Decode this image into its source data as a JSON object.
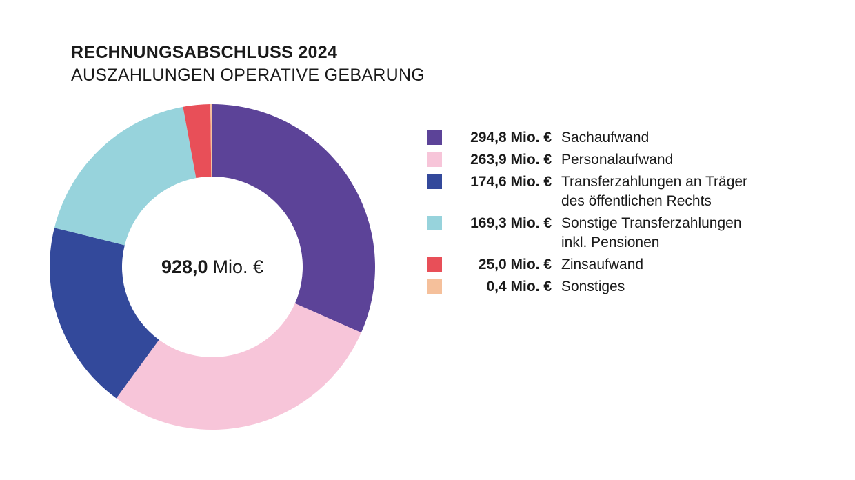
{
  "header": {
    "title": "RECHNUNGSABSCHLUSS 2024",
    "subtitle": "AUSZAHLUNGEN OPERATIVE GEBARUNG"
  },
  "chart_data": {
    "type": "pie",
    "variant": "donut",
    "title": "RECHNUNGSABSCHLUSS 2024",
    "subtitle": "AUSZAHLUNGEN OPERATIVE GEBARUNG",
    "unit": "Mio. €",
    "total_value": 928.0,
    "center": {
      "value": "928,0",
      "unit": "Mio. €"
    },
    "start_angle_deg": 0,
    "direction": "clockwise",
    "legend_position": "right",
    "series": [
      {
        "id": "sachaufwand",
        "label": "Sachaufwand",
        "value": 294.8,
        "display": "294,8 Mio. €",
        "color": "#5C4398"
      },
      {
        "id": "personalaufwand",
        "label": "Personalaufwand",
        "value": 263.9,
        "display": "263,9 Mio. €",
        "color": "#F7C5D9"
      },
      {
        "id": "transferzahlungen-traeger",
        "label": "Transferzahlungen an Träger\ndes öffentlichen Rechts",
        "value": 174.6,
        "display": "174,6 Mio. €",
        "color": "#33499B"
      },
      {
        "id": "sonstige-transferzahlungen",
        "label": "Sonstige Transferzahlungen\ninkl. Pensionen",
        "value": 169.3,
        "display": "169,3 Mio. €",
        "color": "#97D3DC"
      },
      {
        "id": "zinsaufwand",
        "label": "Zinsaufwand",
        "value": 25.0,
        "display": "25,0 Mio. €",
        "color": "#E84F58"
      },
      {
        "id": "sonstiges",
        "label": "Sonstiges",
        "value": 0.4,
        "display": "0,4 Mio. €",
        "color": "#F5C09B"
      }
    ]
  }
}
